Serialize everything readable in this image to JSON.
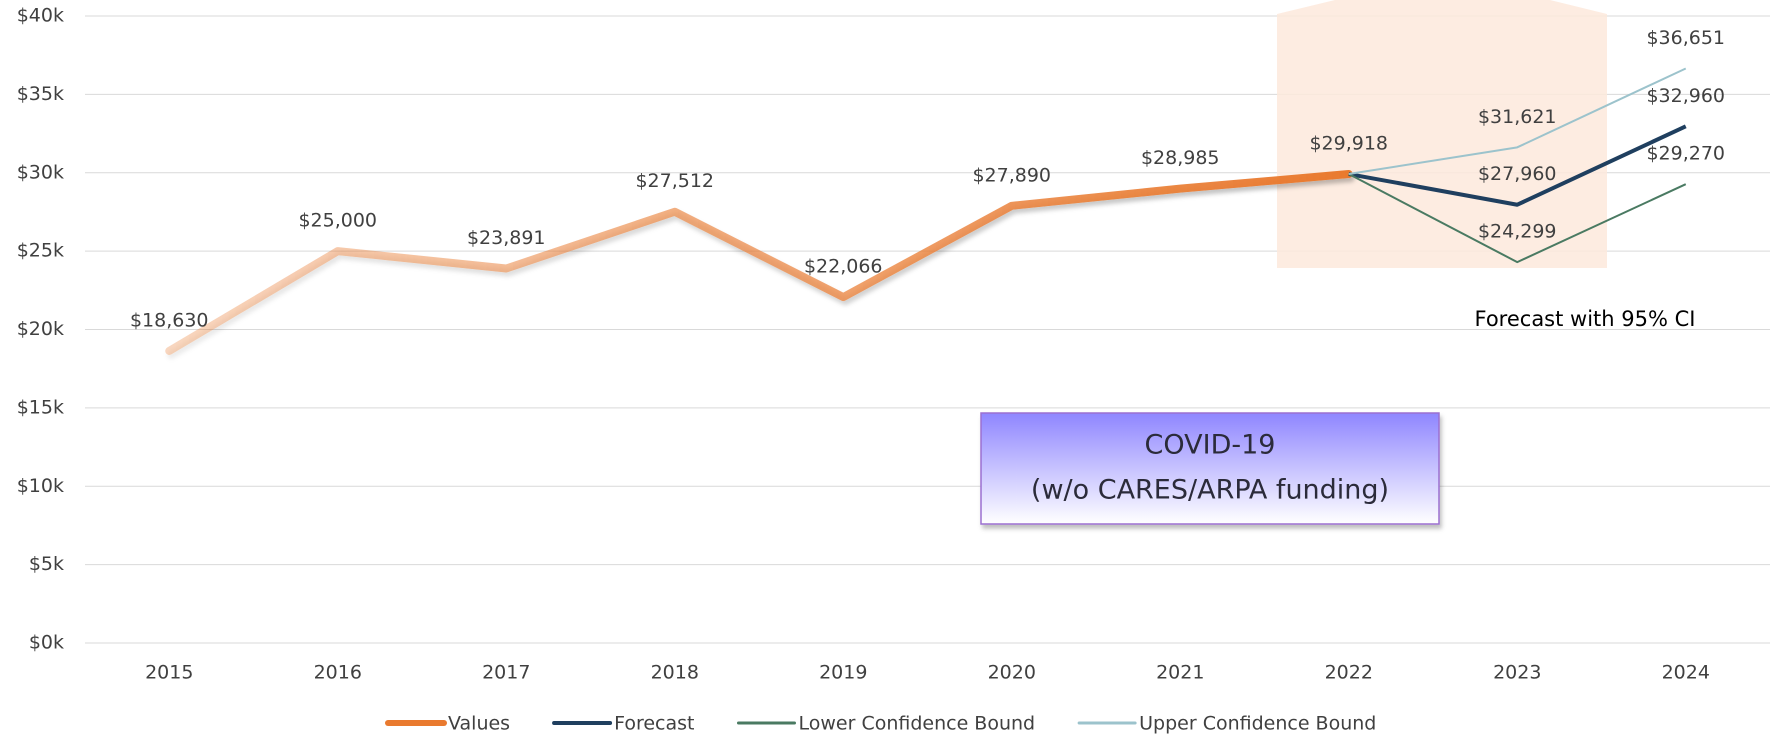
{
  "chart_data": {
    "type": "line",
    "categories": [
      "2015",
      "2016",
      "2017",
      "2018",
      "2019",
      "2020",
      "2021",
      "2022",
      "2023",
      "2024"
    ],
    "series": [
      {
        "name": "Values",
        "color": "#e97a2f",
        "width": 8,
        "values": [
          18630,
          25000,
          23891,
          27512,
          22066,
          27890,
          28985,
          29918,
          null,
          null
        ],
        "value_labels": [
          "$18,630",
          "$25,000",
          "$23,891",
          "$27,512",
          "$22,066",
          "$27,890",
          "$28,985",
          "$29,918",
          null,
          null
        ]
      },
      {
        "name": "Forecast",
        "color": "#1f3f5f",
        "width": 4,
        "values": [
          null,
          null,
          null,
          null,
          null,
          null,
          null,
          29918,
          27960,
          32960
        ],
        "value_labels": [
          null,
          null,
          null,
          null,
          null,
          null,
          null,
          null,
          "$27,960",
          "$32,960"
        ]
      },
      {
        "name": "Lower Confidence Bound",
        "color": "#4a7a62",
        "width": 2,
        "values": [
          null,
          null,
          null,
          null,
          null,
          null,
          null,
          29918,
          24299,
          29270
        ],
        "value_labels": [
          null,
          null,
          null,
          null,
          null,
          null,
          null,
          null,
          "$24,299",
          "$29,270"
        ]
      },
      {
        "name": "Upper Confidence Bound",
        "color": "#9cc3cc",
        "width": 2,
        "values": [
          null,
          null,
          null,
          null,
          null,
          null,
          null,
          29918,
          31621,
          36651
        ],
        "value_labels": [
          null,
          null,
          null,
          null,
          null,
          null,
          null,
          null,
          "$31,621",
          "$36,651"
        ]
      }
    ],
    "ylim": [
      0,
      40000
    ],
    "yticks": [
      {
        "value": 0,
        "label": "$0k"
      },
      {
        "value": 5000,
        "label": "$5k"
      },
      {
        "value": 10000,
        "label": "$10k"
      },
      {
        "value": 15000,
        "label": "$15k"
      },
      {
        "value": 20000,
        "label": "$20k"
      },
      {
        "value": 25000,
        "label": "$25k"
      },
      {
        "value": 30000,
        "label": "$30k"
      },
      {
        "value": 35000,
        "label": "$35k"
      },
      {
        "value": 40000,
        "label": "$40k"
      }
    ],
    "grid": true,
    "legend": "bottom",
    "annotations": [
      "COVID-19",
      "(w/o CARES/ARPA funding)",
      "Forecast with 95% CI"
    ]
  }
}
